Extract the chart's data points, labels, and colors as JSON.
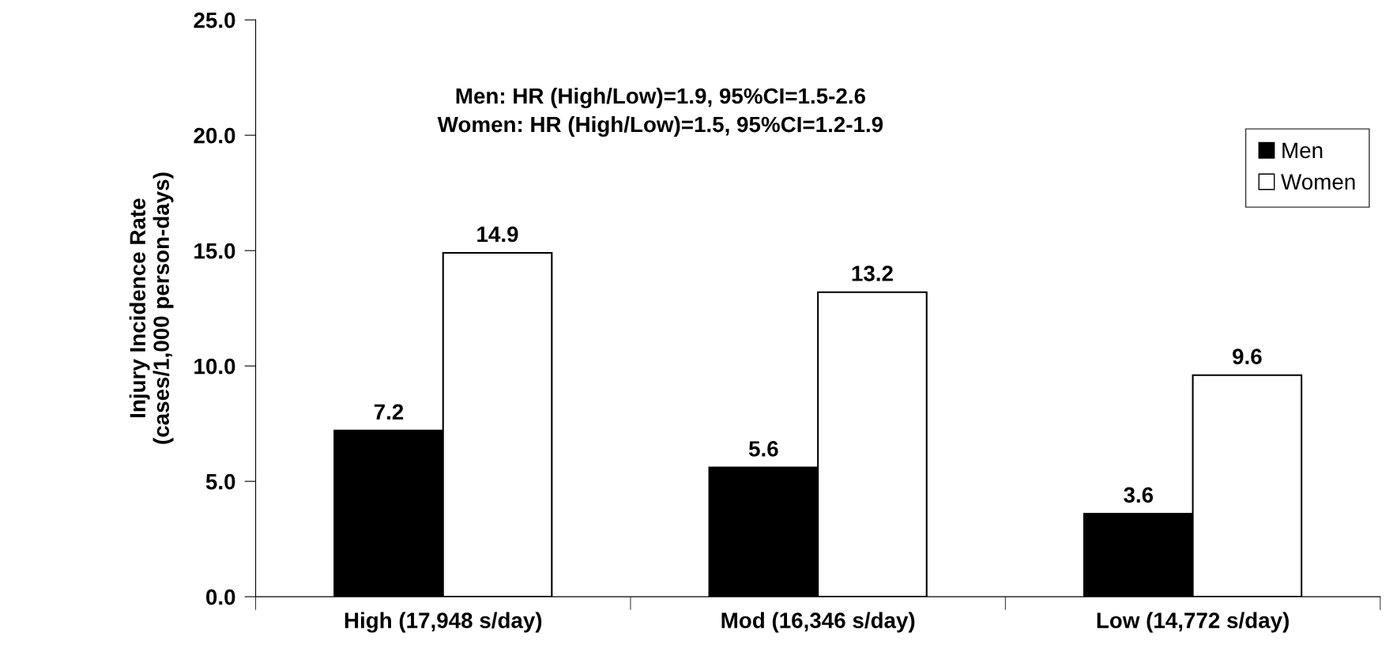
{
  "chart_data": {
    "type": "bar",
    "ylabel": "Injury Incidence Rate\n(cases/1,000 person-days)",
    "categories": [
      "High (17,948 s/day)",
      "Mod (16,346 s/day)",
      "Low (14,772 s/day)"
    ],
    "series": [
      {
        "name": "Men",
        "color": "#000000",
        "values": [
          7.2,
          5.6,
          3.6
        ]
      },
      {
        "name": "Women",
        "color": "#ffffff",
        "values": [
          14.9,
          13.2,
          9.6
        ]
      }
    ],
    "ylim": [
      0,
      25
    ],
    "yticks": [
      {
        "value": 0,
        "label": "0.0"
      },
      {
        "value": 5,
        "label": "5.0"
      },
      {
        "value": 10,
        "label": "10.0"
      },
      {
        "value": 15,
        "label": "15.0"
      },
      {
        "value": 20,
        "label": "20.0"
      },
      {
        "value": 25,
        "label": "25.0"
      }
    ],
    "annotations": [
      "Men: HR (High/Low)=1.9, 95%CI=1.5-2.6\nWomen: HR (High/Low)=1.5, 95%CI=1.2-1.9"
    ],
    "data_labels": true,
    "grid": false,
    "legend": "top right"
  }
}
